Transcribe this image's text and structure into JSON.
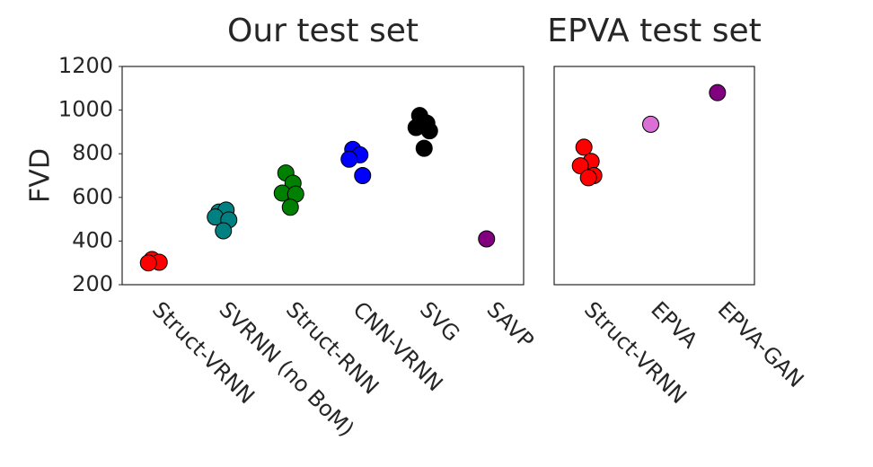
{
  "chart_data": [
    {
      "type": "strip",
      "title": "Our test set",
      "ylabel": "FVD",
      "categories": [
        "Struct-VRNN",
        "SVRNN (no BoM)",
        "Struct-RNN",
        "CNN-VRNN",
        "SVG",
        "SAVP"
      ],
      "colors": [
        "#ff0000",
        "#008080",
        "#008000",
        "#0000ff",
        "#000000",
        "#800080"
      ],
      "values": [
        [
          315,
          303,
          300
        ],
        [
          533,
          542,
          510,
          497,
          447
        ],
        [
          712,
          665,
          620,
          615,
          555
        ],
        [
          820,
          795,
          775,
          700
        ],
        [
          975,
          940,
          920,
          905,
          825
        ],
        [
          410
        ]
      ],
      "ylim": [
        200,
        1200
      ],
      "yticks": [
        200,
        400,
        600,
        800,
        1000,
        1200
      ]
    },
    {
      "type": "strip",
      "title": "EPVA test set",
      "categories": [
        "Struct-VRNN",
        "EPVA",
        "EPVA-GAN"
      ],
      "colors": [
        "#ff0000",
        "#da70d6",
        "#800080"
      ],
      "values": [
        [
          830,
          765,
          745,
          700,
          690
        ],
        [
          935
        ],
        [
          1080
        ]
      ],
      "ylim": [
        200,
        1200
      ]
    }
  ]
}
